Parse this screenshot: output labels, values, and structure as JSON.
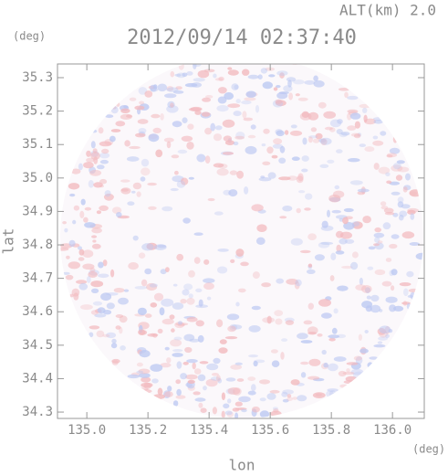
{
  "chart_data": {
    "type": "radar-image",
    "title": "2012/09/14 02:37:40",
    "subtitle": "ALT(km) 2.0",
    "x_label": "lon",
    "y_label": "lat",
    "x_unit": "(deg)",
    "y_unit": "(deg)",
    "xlim": [
      134.904,
      136.104
    ],
    "xticks": [
      {
        "value": 135.0,
        "label": "135.0"
      },
      135.2,
      135.4,
      135.6,
      135.8,
      {
        "value": 136.0,
        "label": "136.0"
      }
    ],
    "ylim": [
      34.281,
      35.341
    ],
    "yticks": [
      34.3,
      34.4,
      34.5,
      34.6,
      34.7,
      34.8,
      34.9,
      {
        "value": 35.0,
        "label": "35.0"
      },
      35.1,
      35.2,
      35.3
    ]
  }
}
